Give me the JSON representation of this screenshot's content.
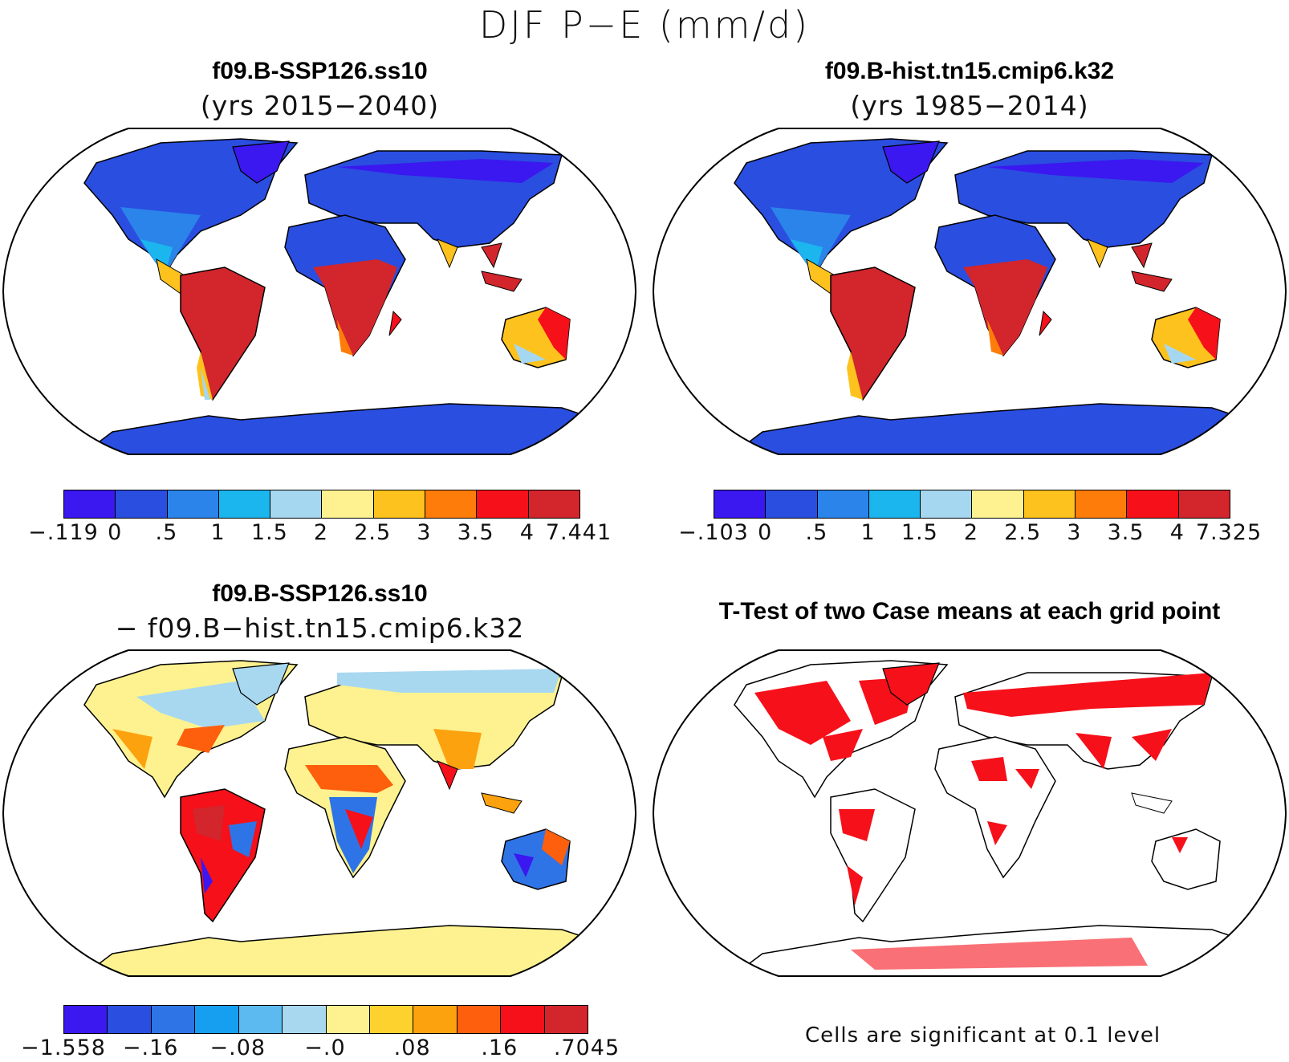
{
  "main_title": "DJF P−E (mm/d)",
  "panels": {
    "top_left": {
      "title": "f09.B-SSP126.ss10",
      "subtitle": "(yrs 2015−2040)"
    },
    "top_right": {
      "title": "f09.B-hist.tn15.cmip6.k32",
      "subtitle": "(yrs 1985−2014)"
    },
    "bottom_left": {
      "title": "f09.B-SSP126.ss10",
      "subtitle": "− f09.B−hist.tn15.cmip6.k32"
    },
    "bottom_right": {
      "title": "T-Test of two Case means at each grid point",
      "note": "Cells are significant at 0.1 level"
    }
  },
  "colorbars": {
    "top_left": {
      "colors": [
        "#3b17f0",
        "#2a4ee0",
        "#2b84ea",
        "#1cb6ee",
        "#a6d7f0",
        "#fdf28f",
        "#fdc21d",
        "#fd7c0a",
        "#f5101a",
        "#d2252c"
      ],
      "labels": [
        "−.119",
        "0",
        ".5",
        "1",
        "1.5",
        "2",
        "2.5",
        "3",
        "3.5",
        "4",
        "7.441"
      ]
    },
    "top_right": {
      "colors": [
        "#3b17f0",
        "#2a4ee0",
        "#2b84ea",
        "#1cb6ee",
        "#a6d7f0",
        "#fdf28f",
        "#fdc21d",
        "#fd7c0a",
        "#f5101a",
        "#d2252c"
      ],
      "labels": [
        "−.103",
        "0",
        ".5",
        "1",
        "1.5",
        "2",
        "2.5",
        "3",
        "3.5",
        "4",
        "7.325"
      ]
    },
    "bottom_left": {
      "colors": [
        "#3b17f0",
        "#2a4ee0",
        "#2f74e6",
        "#169ff0",
        "#5cbaf0",
        "#a8d8f0",
        "#fdf28f",
        "#fdd22e",
        "#fda20f",
        "#fd5f0c",
        "#f5101a",
        "#d2252c"
      ],
      "labels": [
        "−1.558",
        "−.16",
        "−.08",
        "−.0",
        ".08",
        ".16",
        ".7045"
      ]
    }
  }
}
